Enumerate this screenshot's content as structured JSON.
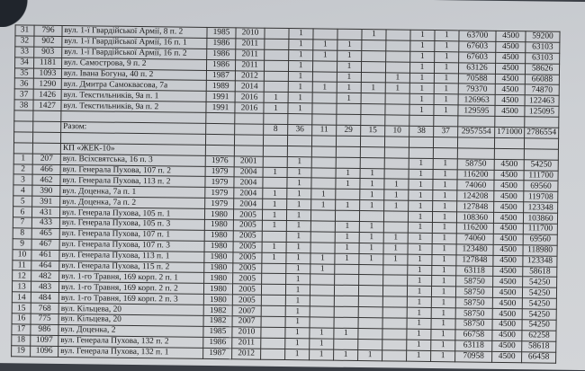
{
  "top_rows": [
    {
      "n": "31",
      "code": "796",
      "addr": "вул. 1-ї Гвардійської Армії, 8 п. 2",
      "y1": "1985",
      "y2": "2010",
      "flags": [
        "",
        "1",
        "",
        "",
        "1",
        "",
        "1",
        "1"
      ],
      "total": "63700",
      "fee": "4500",
      "net": "59200"
    },
    {
      "n": "32",
      "code": "902",
      "addr": "вул. 1-ї Гвардійської Армії, 16 п. 1",
      "y1": "1986",
      "y2": "2011",
      "flags": [
        "",
        "1",
        "1",
        "1",
        "",
        "",
        "1",
        "1"
      ],
      "total": "67603",
      "fee": "4500",
      "net": "63103"
    },
    {
      "n": "33",
      "code": "903",
      "addr": "вул. 1-ї Гвардійської Армії, 16 п. 2",
      "y1": "1986",
      "y2": "2011",
      "flags": [
        "",
        "1",
        "1",
        "1",
        "",
        "",
        "1",
        "1"
      ],
      "total": "67603",
      "fee": "4500",
      "net": "63103"
    },
    {
      "n": "34",
      "code": "1181",
      "addr": "вул. Самострова, 9 п. 2",
      "y1": "1986",
      "y2": "2011",
      "flags": [
        "",
        "1",
        "",
        "1",
        "",
        "",
        "1",
        "1"
      ],
      "total": "63126",
      "fee": "4500",
      "net": "58626"
    },
    {
      "n": "35",
      "code": "1093",
      "addr": "вул. Івана Богуна, 40 п. 2",
      "y1": "1987",
      "y2": "2012",
      "flags": [
        "",
        "1",
        "",
        "1",
        "",
        "1",
        "1",
        "1"
      ],
      "total": "70588",
      "fee": "4500",
      "net": "66088"
    },
    {
      "n": "36",
      "code": "1290",
      "addr": "вул. Дмитра Самоквасова, 7а",
      "y1": "1989",
      "y2": "2014",
      "flags": [
        "",
        "1",
        "1",
        "1",
        "1",
        "1",
        "1",
        "1"
      ],
      "total": "79370",
      "fee": "4500",
      "net": "74870"
    },
    {
      "n": "37",
      "code": "1426",
      "addr": "вул. Текстильників, 9а п. 1",
      "y1": "1991",
      "y2": "2016",
      "flags": [
        "1",
        "1",
        "",
        "1",
        "",
        "",
        "1",
        "1"
      ],
      "total": "126963",
      "fee": "4500",
      "net": "122463"
    },
    {
      "n": "38",
      "code": "1427",
      "addr": "вул. Текстильників, 9а п. 2",
      "y1": "1991",
      "y2": "2016",
      "flags": [
        "1",
        "1",
        "",
        "",
        "",
        "",
        "1",
        "1"
      ],
      "total": "129595",
      "fee": "4500",
      "net": "125095"
    }
  ],
  "summary": {
    "label": "Разом:",
    "flag_totals": [
      "8",
      "36",
      "11",
      "29",
      "15",
      "10",
      "38",
      "37"
    ],
    "total": "2957554",
    "fee": "171000",
    "net": "2786554"
  },
  "section_title": "КП «ЖЕК-10»",
  "rows": [
    {
      "n": "1",
      "code": "207",
      "addr": "вул. Всіхсвятська, 16 п. 3",
      "y1": "1976",
      "y2": "2001",
      "flags": [
        "",
        "1",
        "",
        "",
        "",
        "",
        "1",
        "1"
      ],
      "total": "58750",
      "fee": "4500",
      "net": "54250"
    },
    {
      "n": "2",
      "code": "466",
      "addr": "вул. Генерала Пухова, 107 п. 2",
      "y1": "1979",
      "y2": "2004",
      "flags": [
        "1",
        "1",
        "",
        "1",
        "1",
        "",
        "1",
        "1"
      ],
      "total": "116200",
      "fee": "4500",
      "net": "111700"
    },
    {
      "n": "3",
      "code": "462",
      "addr": "вул. Генерала Пухова, 113 п. 2",
      "y1": "1979",
      "y2": "2004",
      "flags": [
        "",
        "1",
        "",
        "1",
        "1",
        "1",
        "1",
        "1"
      ],
      "total": "74060",
      "fee": "4500",
      "net": "69560"
    },
    {
      "n": "4",
      "code": "390",
      "addr": "вул. Доценка, 7а п. 1",
      "y1": "1979",
      "y2": "2004",
      "flags": [
        "1",
        "1",
        "1",
        "",
        "1",
        "1",
        "1",
        "1"
      ],
      "total": "124208",
      "fee": "4500",
      "net": "119708"
    },
    {
      "n": "5",
      "code": "391",
      "addr": "вул. Доценка, 7а п. 2",
      "y1": "1979",
      "y2": "2004",
      "flags": [
        "1",
        "1",
        "1",
        "1",
        "1",
        "1",
        "1",
        "1"
      ],
      "total": "127848",
      "fee": "4500",
      "net": "123348"
    },
    {
      "n": "6",
      "code": "431",
      "addr": "вул. Генерала Пухова, 105 п. 1",
      "y1": "1980",
      "y2": "2005",
      "flags": [
        "1",
        "1",
        "",
        "",
        "",
        "",
        "1",
        "1"
      ],
      "total": "108360",
      "fee": "4500",
      "net": "103860"
    },
    {
      "n": "7",
      "code": "433",
      "addr": "вул. Генерала Пухова, 105 п. 3",
      "y1": "1980",
      "y2": "2005",
      "flags": [
        "1",
        "1",
        "",
        "1",
        "1",
        "",
        "1",
        "1"
      ],
      "total": "116200",
      "fee": "4500",
      "net": "111700"
    },
    {
      "n": "8",
      "code": "465",
      "addr": "вул. Генерала Пухова, 107 п. 1",
      "y1": "1980",
      "y2": "2005",
      "flags": [
        "",
        "1",
        "",
        "1",
        "1",
        "1",
        "1",
        "1"
      ],
      "total": "74060",
      "fee": "4500",
      "net": "69560"
    },
    {
      "n": "9",
      "code": "467",
      "addr": "вул. Генерала Пухова, 107 п. 3",
      "y1": "1980",
      "y2": "2005",
      "flags": [
        "1",
        "1",
        "",
        "1",
        "1",
        "1",
        "1",
        "1"
      ],
      "total": "123480",
      "fee": "4500",
      "net": "118980"
    },
    {
      "n": "10",
      "code": "461",
      "addr": "вул. Генерала Пухова, 113 п. 1",
      "y1": "1980",
      "y2": "2005",
      "flags": [
        "1",
        "1",
        "1",
        "1",
        "1",
        "1",
        "1",
        "1"
      ],
      "total": "127848",
      "fee": "4500",
      "net": "123348"
    },
    {
      "n": "11",
      "code": "464",
      "addr": "вул. Генерала Пухова, 115 п. 2",
      "y1": "1980",
      "y2": "2005",
      "flags": [
        "",
        "1",
        "1",
        "",
        "",
        "",
        "1",
        "1"
      ],
      "total": "63118",
      "fee": "4500",
      "net": "58618"
    },
    {
      "n": "12",
      "code": "482",
      "addr": "вул. 1-го Травня, 169 корп. 2 п. 1",
      "y1": "1980",
      "y2": "2005",
      "flags": [
        "",
        "1",
        "",
        "",
        "",
        "",
        "1",
        "1"
      ],
      "total": "58750",
      "fee": "4500",
      "net": "54250"
    },
    {
      "n": "13",
      "code": "483",
      "addr": "вул. 1-го Травня, 169 корп. 2 п. 2",
      "y1": "1980",
      "y2": "2005",
      "flags": [
        "",
        "1",
        "",
        "",
        "",
        "",
        "1",
        "1"
      ],
      "total": "58750",
      "fee": "4500",
      "net": "54250"
    },
    {
      "n": "14",
      "code": "484",
      "addr": "вул. 1-го Травня, 169 корп. 2 п. 3",
      "y1": "1980",
      "y2": "2005",
      "flags": [
        "",
        "1",
        "",
        "",
        "",
        "",
        "1",
        "1"
      ],
      "total": "58750",
      "fee": "4500",
      "net": "54250"
    },
    {
      "n": "15",
      "code": "768",
      "addr": "вул. Кільцева, 20",
      "y1": "1982",
      "y2": "2007",
      "flags": [
        "",
        "1",
        "",
        "",
        "",
        "",
        "1",
        "1"
      ],
      "total": "58750",
      "fee": "4500",
      "net": "54250"
    },
    {
      "n": "16",
      "code": "775",
      "addr": "вул. Кільцева, 20",
      "y1": "1982",
      "y2": "2007",
      "flags": [
        "",
        "1",
        "",
        "",
        "",
        "",
        "1",
        "1"
      ],
      "total": "58750",
      "fee": "4500",
      "net": "54250"
    },
    {
      "n": "17",
      "code": "986",
      "addr": "вул. Доценка, 2",
      "y1": "1985",
      "y2": "2010",
      "flags": [
        "",
        "1",
        "1",
        "1",
        "",
        "",
        "1",
        "1"
      ],
      "total": "66758",
      "fee": "4500",
      "net": "62258"
    },
    {
      "n": "18",
      "code": "1097",
      "addr": "вул. Генерала Пухова, 132 п. 2",
      "y1": "1986",
      "y2": "2011",
      "flags": [
        "",
        "1",
        "1",
        "",
        "",
        "",
        "1",
        "1"
      ],
      "total": "63118",
      "fee": "4500",
      "net": "58618"
    },
    {
      "n": "19",
      "code": "1096",
      "addr": "вул. Генерала Пухова, 132 п. 1",
      "y1": "1987",
      "y2": "2012",
      "flags": [
        "",
        "1",
        "1",
        "1",
        "1",
        "",
        "1",
        "1"
      ],
      "total": "70958",
      "fee": "4500",
      "net": "66458"
    }
  ]
}
